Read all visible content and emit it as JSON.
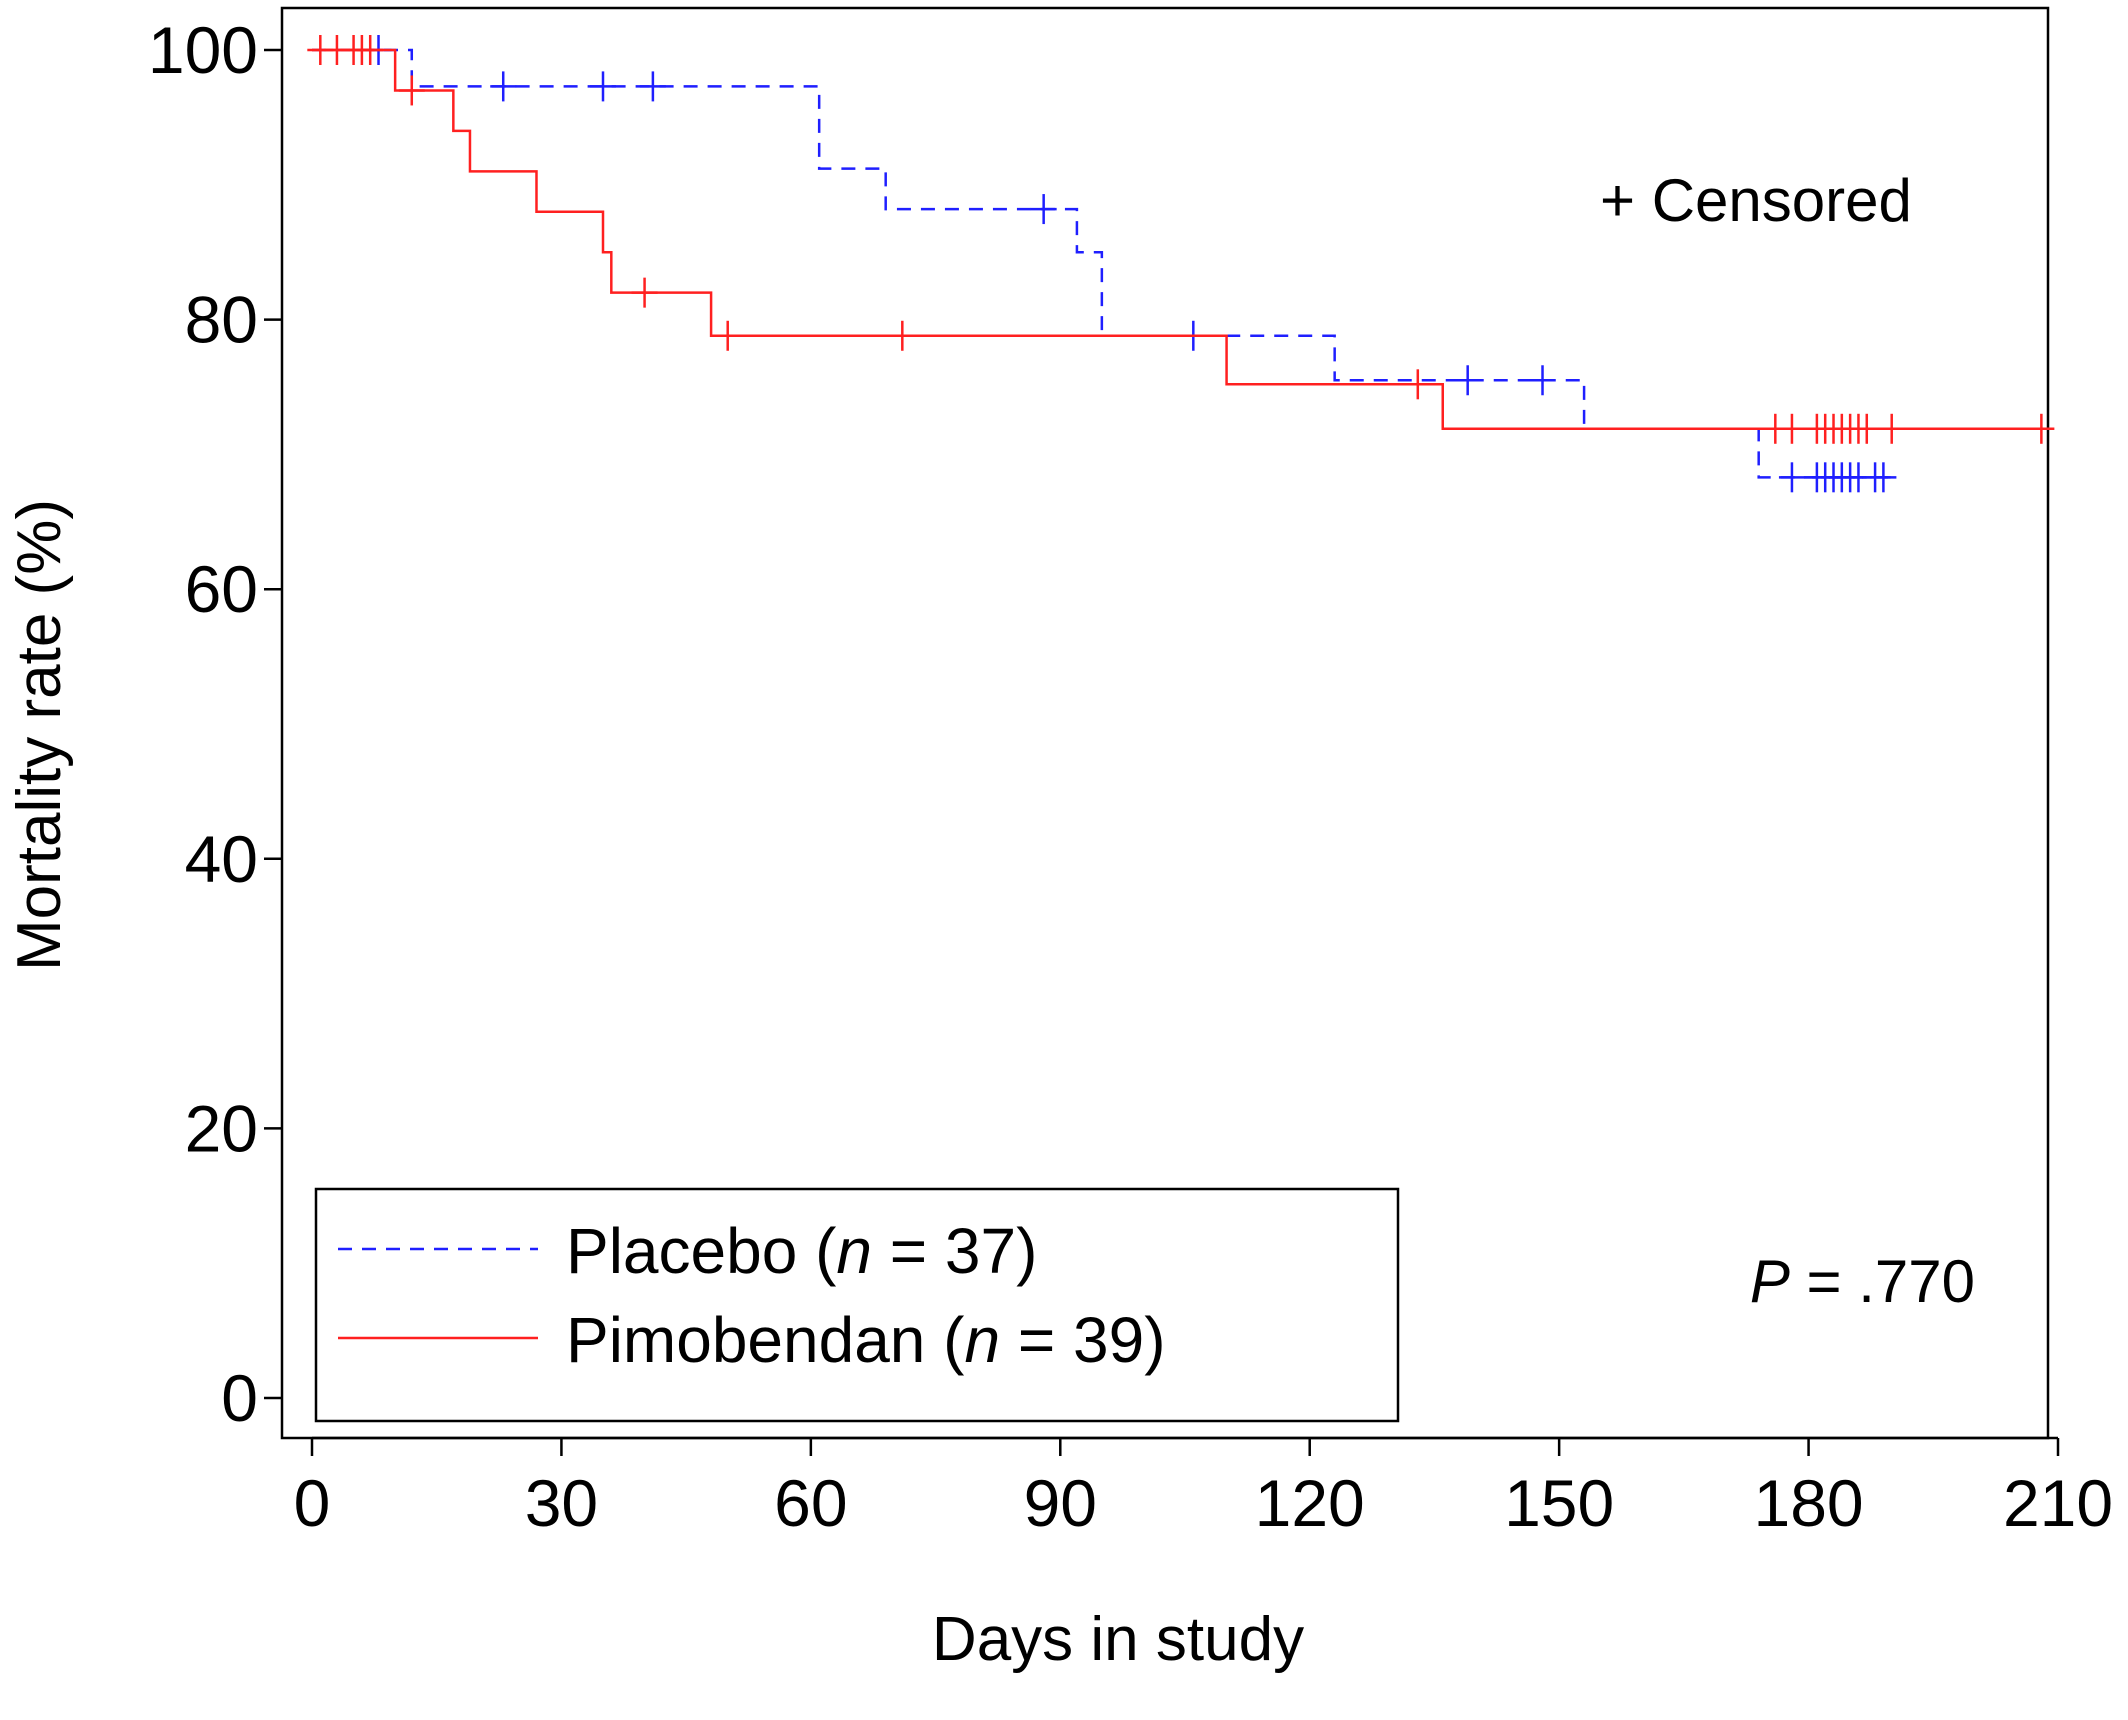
{
  "chart_data": {
    "type": "line",
    "subtype": "kaplan-meier step",
    "xlabel": "Days in study",
    "ylabel": "Mortality rate (%)",
    "xlim": [
      0,
      210
    ],
    "ylim": [
      0,
      100
    ],
    "xticks": [
      0,
      30,
      60,
      90,
      120,
      150,
      180,
      210
    ],
    "yticks": [
      0,
      20,
      40,
      60,
      80,
      100
    ],
    "grid": false,
    "legend_position": "bottom-left",
    "censor_note": "+ Censored",
    "p_value": {
      "label": "P",
      "text": " = .770"
    },
    "series": [
      {
        "name": "Placebo",
        "legend": {
          "prefix": "Placebo (",
          "n_symbol": "n",
          "suffix": " = 37)"
        },
        "color": "#1f1fff",
        "line_style": "dashed",
        "steps": [
          [
            0,
            100
          ],
          [
            12,
            97.3
          ],
          [
            61,
            91.2
          ],
          [
            69,
            88.2
          ],
          [
            92,
            85.0
          ],
          [
            95,
            78.8
          ],
          [
            123,
            75.5
          ],
          [
            153,
            71.9
          ],
          [
            174,
            68.3
          ],
          [
            191,
            68.3
          ]
        ],
        "censored": [
          [
            8,
            100
          ],
          [
            23,
            97.3
          ],
          [
            35,
            97.3
          ],
          [
            41,
            97.3
          ],
          [
            88,
            88.2
          ],
          [
            106,
            78.8
          ],
          [
            139,
            75.5
          ],
          [
            148,
            75.5
          ],
          [
            178,
            68.3
          ],
          [
            181,
            68.3
          ],
          [
            182,
            68.3
          ],
          [
            183,
            68.3
          ],
          [
            184,
            68.3
          ],
          [
            185,
            68.3
          ],
          [
            186,
            68.3
          ],
          [
            188,
            68.3
          ],
          [
            189,
            68.3
          ]
        ]
      },
      {
        "name": "Pimobendan",
        "legend": {
          "prefix": "Pimobendan (",
          "n_symbol": "n",
          "suffix": " = 39)"
        },
        "color": "#ff2020",
        "line_style": "solid",
        "steps": [
          [
            0,
            100
          ],
          [
            10,
            97.0
          ],
          [
            17,
            94.0
          ],
          [
            19,
            91.0
          ],
          [
            27,
            88.0
          ],
          [
            35,
            85.0
          ],
          [
            36,
            82.0
          ],
          [
            48,
            78.8
          ],
          [
            110,
            75.2
          ],
          [
            136,
            71.9
          ],
          [
            208,
            71.9
          ]
        ],
        "censored": [
          [
            1,
            100
          ],
          [
            3,
            100
          ],
          [
            5,
            100
          ],
          [
            6,
            100
          ],
          [
            7,
            100
          ],
          [
            12,
            97.0
          ],
          [
            40,
            82.0
          ],
          [
            50,
            78.8
          ],
          [
            71,
            78.8
          ],
          [
            133,
            75.2
          ],
          [
            176,
            71.9
          ],
          [
            178,
            71.9
          ],
          [
            181,
            71.9
          ],
          [
            182,
            71.9
          ],
          [
            183,
            71.9
          ],
          [
            184,
            71.9
          ],
          [
            185,
            71.9
          ],
          [
            186,
            71.9
          ],
          [
            187,
            71.9
          ],
          [
            190,
            71.9
          ],
          [
            208,
            71.9
          ]
        ]
      }
    ]
  }
}
